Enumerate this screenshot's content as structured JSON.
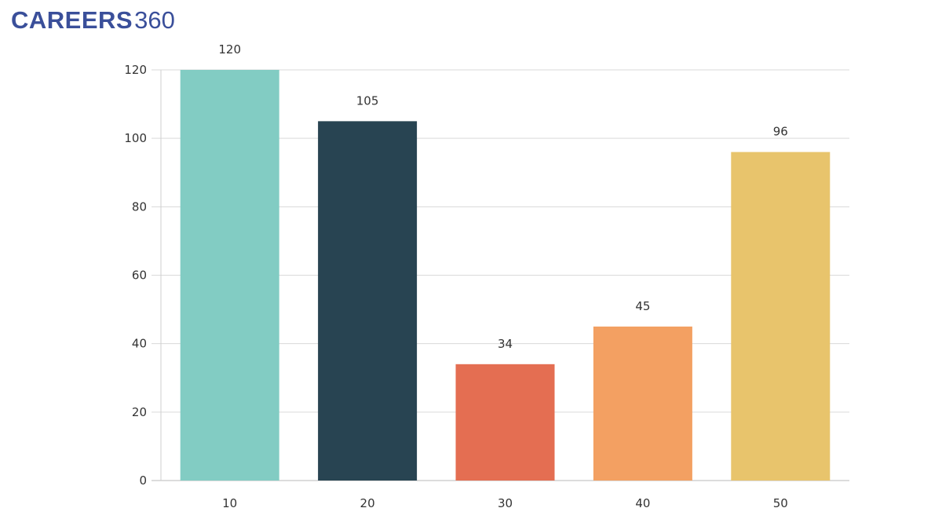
{
  "logo": {
    "main": "CAREERS",
    "number": "360",
    "color": "#3a4f9a"
  },
  "chart_data": {
    "type": "bar",
    "categories": [
      "10",
      "20",
      "30",
      "40",
      "50"
    ],
    "values": [
      120,
      105,
      34,
      45,
      96
    ],
    "colors": [
      "#82ccc3",
      "#284452",
      "#e46e52",
      "#f3a062",
      "#e8c46c"
    ],
    "data_labels": [
      "120",
      "105",
      "34",
      "45",
      "96"
    ],
    "ylim": [
      0,
      120
    ],
    "yticks": [
      0,
      20,
      40,
      60,
      80,
      100,
      120
    ],
    "grid": true,
    "title": "",
    "xlabel": "",
    "ylabel": ""
  }
}
